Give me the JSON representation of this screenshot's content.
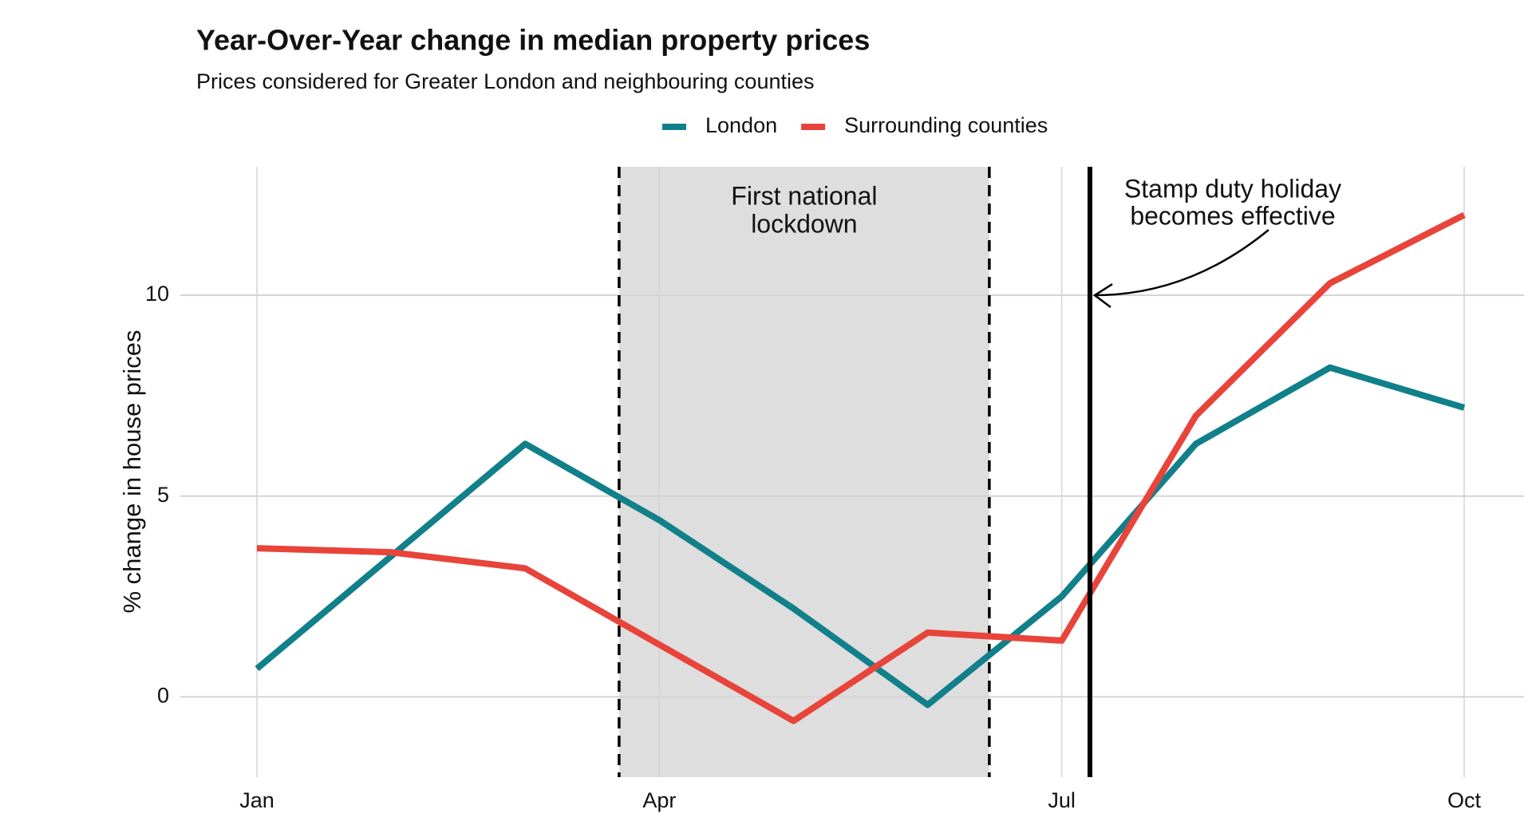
{
  "chart_data": {
    "type": "line",
    "title": "Year-Over-Year change in median property prices",
    "subtitle": "Prices considered for Greater London and neighbouring counties",
    "y_label": "% change in house prices",
    "categories": [
      "Jan",
      null,
      null,
      "Apr",
      null,
      null,
      "Jul",
      null,
      null,
      "Oct"
    ],
    "series": [
      {
        "name": "London",
        "color": "#11808a",
        "values": [
          0.7,
          3.5,
          6.3,
          4.4,
          2.2,
          -0.2,
          2.5,
          6.3,
          8.2,
          7.2
        ]
      },
      {
        "name": "Surrounding counties",
        "color": "#e8443a",
        "values": [
          3.7,
          3.6,
          3.2,
          1.3,
          -0.6,
          1.6,
          1.4,
          7.0,
          10.3,
          12.0
        ]
      }
    ],
    "ylim": [
      -2,
      13.2
    ],
    "yticks": [
      0,
      5,
      10
    ],
    "grid": true,
    "legend": "top",
    "shaded_region": {
      "label": [
        "First national",
        "lockdown"
      ],
      "start": 2.7,
      "end": 5.46,
      "color": "#dedede"
    },
    "vline": {
      "label": [
        "Stamp duty holiday",
        "becomes effective"
      ],
      "x": 6.21,
      "arrow_to": 10
    }
  }
}
